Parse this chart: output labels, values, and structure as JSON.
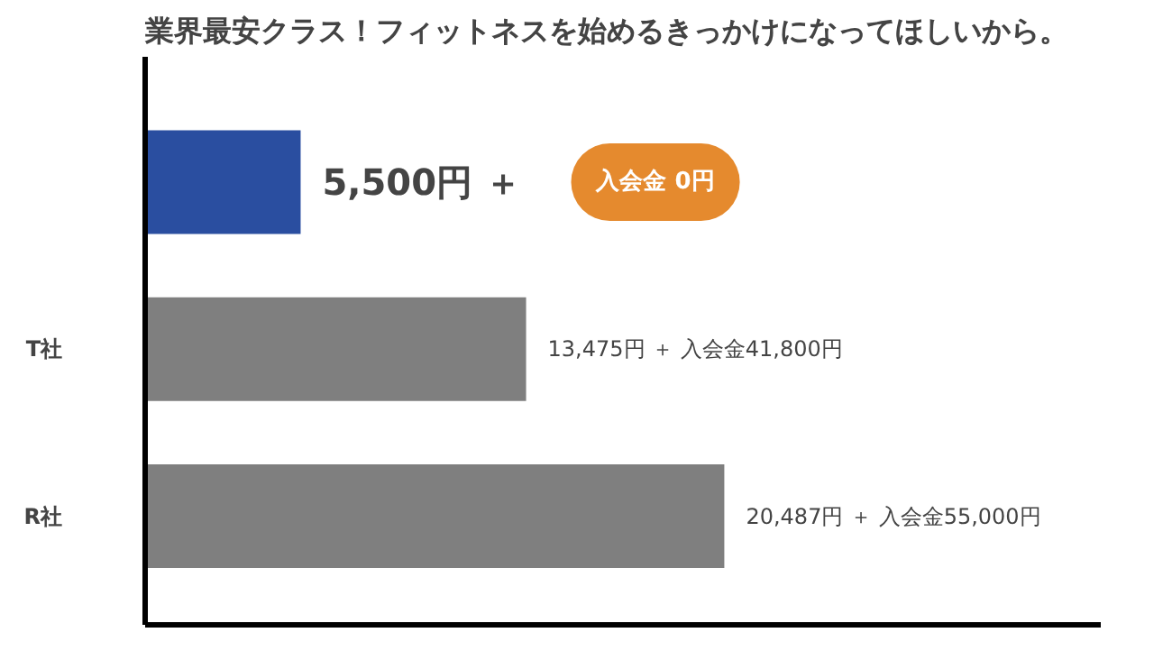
{
  "chart_data": {
    "type": "bar",
    "orientation": "horizontal",
    "title": "業界最安クラス！フィットネスを始めるきっかけになってほしいから。",
    "categories": [
      null,
      "T社",
      "R社"
    ],
    "values": [
      5500,
      13475,
      20487
    ],
    "colors": [
      "#2a4ea0",
      "#7f7f7f",
      "#7f7f7f"
    ],
    "value_labels": [
      "5,500円 ＋",
      "13,475円 ＋ 入会金41,800円",
      "20,487円 ＋ 入会金55,000円"
    ],
    "annotations": [
      "入会金 0円"
    ],
    "grid": false
  }
}
